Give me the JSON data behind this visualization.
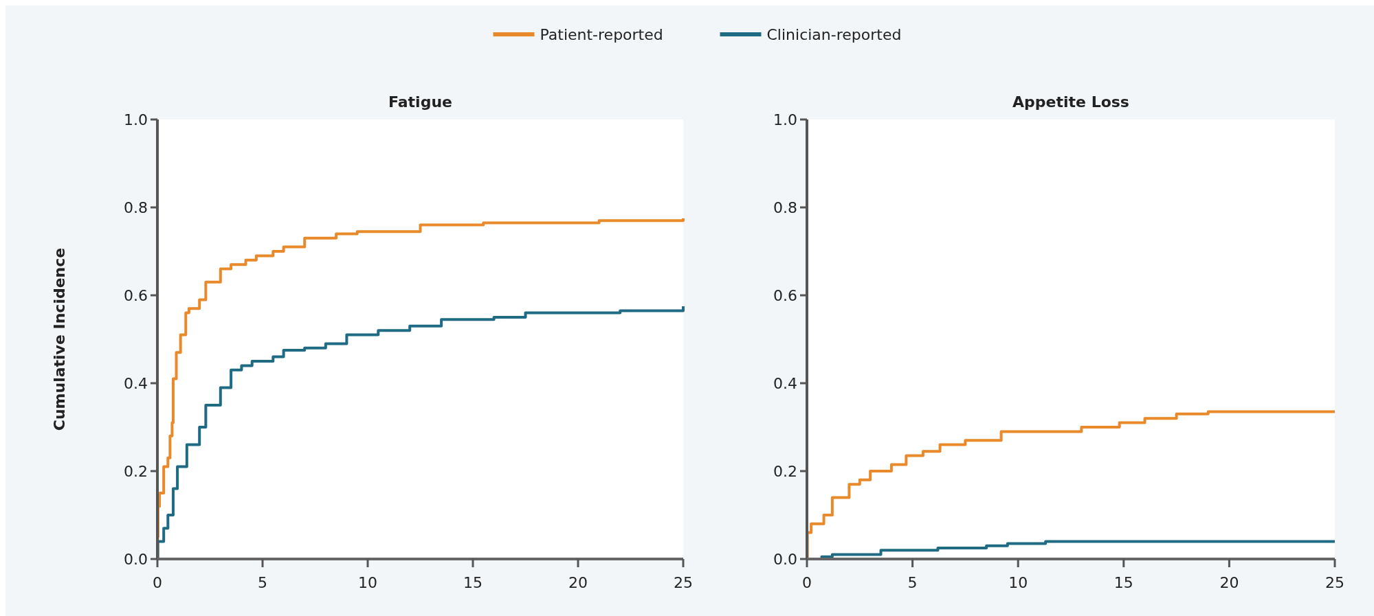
{
  "chart_data": [
    {
      "type": "step",
      "title": "Fatigue",
      "ylabel": "Cumulative Incidence",
      "legend": "top",
      "xlim": [
        0,
        25
      ],
      "ylim": [
        0,
        1
      ],
      "xticks": [
        0,
        5,
        10,
        15,
        20,
        25
      ],
      "yticks": [
        {
          "value": 0,
          "label": "0.0"
        },
        {
          "value": 0.2,
          "label": "0.2"
        },
        {
          "value": 0.4,
          "label": "0.4"
        },
        {
          "value": 0.6,
          "label": "0.6"
        },
        {
          "value": 0.8,
          "label": "0.8"
        },
        {
          "value": 1,
          "label": "1.0"
        }
      ],
      "series": [
        {
          "name": "Patient-reported",
          "color": "#e8892b",
          "x": [
            0,
            0.01,
            0.03,
            0.1,
            0.3,
            0.5,
            0.6,
            0.7,
            0.75,
            0.9,
            1.1,
            1.35,
            1.5,
            2,
            2.3,
            3,
            3.5,
            4.2,
            4.7,
            5.5,
            6,
            7,
            8.5,
            9.5,
            12.5,
            15.5,
            21,
            25
          ],
          "values": [
            0,
            0.05,
            0.12,
            0.15,
            0.21,
            0.23,
            0.28,
            0.31,
            0.41,
            0.47,
            0.51,
            0.56,
            0.57,
            0.59,
            0.63,
            0.66,
            0.67,
            0.68,
            0.69,
            0.7,
            0.71,
            0.73,
            0.74,
            0.745,
            0.76,
            0.765,
            0.77,
            0.775
          ]
        },
        {
          "name": "Clinician-reported",
          "color": "#1f6b84",
          "x": [
            0,
            0.02,
            0.3,
            0.5,
            0.75,
            0.95,
            1.4,
            2,
            2.3,
            3,
            3.5,
            4,
            4.5,
            5.5,
            6,
            7,
            8,
            9,
            10.5,
            12,
            13.5,
            16,
            17.5,
            22,
            25
          ],
          "values": [
            0,
            0.04,
            0.07,
            0.1,
            0.16,
            0.21,
            0.26,
            0.3,
            0.35,
            0.39,
            0.43,
            0.44,
            0.45,
            0.46,
            0.475,
            0.48,
            0.49,
            0.51,
            0.52,
            0.53,
            0.545,
            0.55,
            0.56,
            0.565,
            0.575
          ]
        }
      ]
    },
    {
      "type": "step",
      "title": "Appetite Loss",
      "xlim": [
        0,
        25
      ],
      "ylim": [
        0,
        1
      ],
      "xticks": [
        0,
        5,
        10,
        15,
        20,
        25
      ],
      "yticks": [
        {
          "value": 0,
          "label": "0.0"
        },
        {
          "value": 0.2,
          "label": "0.2"
        },
        {
          "value": 0.4,
          "label": "0.4"
        },
        {
          "value": 0.6,
          "label": "0.6"
        },
        {
          "value": 0.8,
          "label": "0.8"
        },
        {
          "value": 1,
          "label": "1.0"
        }
      ],
      "series": [
        {
          "color": "#e8892b",
          "x": [
            0,
            0.02,
            0.2,
            0.8,
            1.2,
            2,
            2.5,
            3,
            4,
            4.7,
            5.5,
            6.3,
            7.5,
            9.2,
            13,
            14.8,
            16,
            17.5,
            19,
            25
          ],
          "values": [
            0,
            0.06,
            0.08,
            0.1,
            0.14,
            0.17,
            0.18,
            0.2,
            0.215,
            0.235,
            0.245,
            0.26,
            0.27,
            0.29,
            0.3,
            0.31,
            0.32,
            0.33,
            0.335,
            0.335
          ]
        },
        {
          "color": "#1f6b84",
          "x": [
            0,
            0.7,
            1.2,
            3.5,
            6.2,
            8.5,
            9.5,
            11.3,
            25
          ],
          "values": [
            0,
            0.005,
            0.01,
            0.02,
            0.025,
            0.03,
            0.035,
            0.04,
            0.04
          ]
        }
      ]
    }
  ]
}
